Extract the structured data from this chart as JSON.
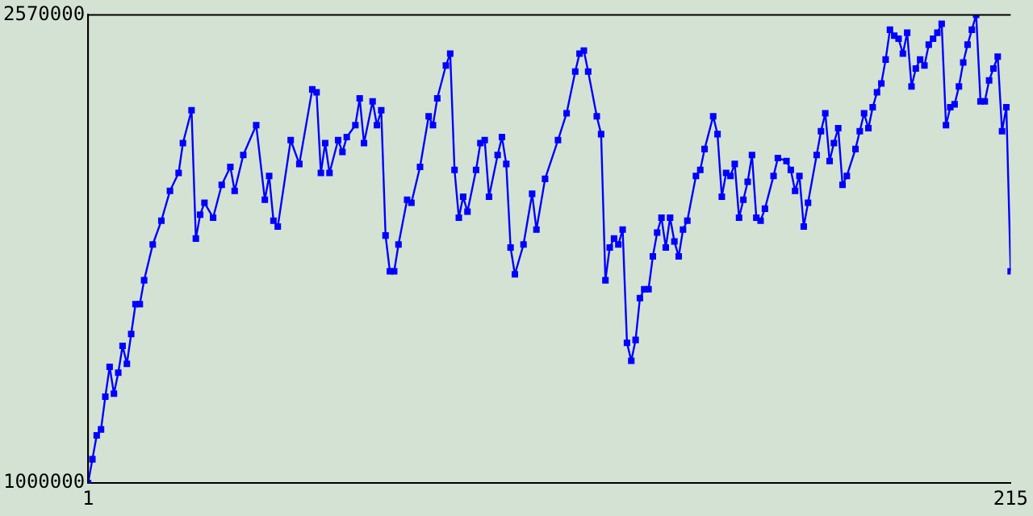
{
  "chart_data": {
    "type": "line",
    "marker": "square",
    "line_style": "solid",
    "grid": false,
    "legend": false,
    "xlim": [
      1,
      215
    ],
    "xticks": [
      1,
      215
    ],
    "ylim": [
      1000000,
      2570000
    ],
    "yticks": [
      1000000,
      2570000
    ],
    "series": [
      {
        "color": "#0000ff",
        "x": [
          1,
          2,
          3,
          4,
          5,
          6,
          7,
          8,
          9,
          10,
          11,
          12,
          13,
          14,
          16,
          18,
          20,
          22,
          23,
          25,
          26,
          27,
          28,
          30,
          32,
          34,
          35,
          37,
          40,
          42,
          43,
          44,
          45,
          48,
          50,
          53,
          54,
          55,
          56,
          57,
          59,
          60,
          61,
          63,
          64,
          65,
          67,
          68,
          69,
          70,
          71,
          72,
          73,
          75,
          76,
          78,
          80,
          81,
          82,
          84,
          85,
          86,
          87,
          88,
          89,
          91,
          92,
          93,
          94,
          96,
          97,
          98,
          99,
          100,
          102,
          104,
          105,
          107,
          110,
          112,
          114,
          115,
          116,
          117,
          119,
          120,
          121,
          122,
          123,
          124,
          125,
          126,
          127,
          128,
          129,
          130,
          131,
          132,
          133,
          134,
          135,
          136,
          137,
          138,
          139,
          140,
          142,
          143,
          144,
          146,
          147,
          148,
          149,
          150,
          151,
          152,
          153,
          154,
          155,
          156,
          157,
          158,
          160,
          161,
          163,
          164,
          165,
          166,
          167,
          168,
          170,
          171,
          172,
          173,
          174,
          175,
          176,
          177,
          179,
          180,
          181,
          182,
          183,
          184,
          185,
          186,
          187,
          188,
          189,
          190,
          191,
          192,
          193,
          194,
          195,
          196,
          197,
          198,
          199,
          200,
          201,
          202,
          203,
          204,
          205,
          206,
          207,
          208,
          209,
          210,
          211,
          212,
          213,
          214,
          215
        ],
        "values": [
          1000000,
          1080000,
          1160000,
          1180000,
          1290000,
          1390000,
          1300000,
          1370000,
          1460000,
          1400000,
          1500000,
          1600000,
          1600000,
          1680000,
          1800000,
          1880000,
          1980000,
          2040000,
          2140000,
          2250000,
          1820000,
          1900000,
          1940000,
          1890000,
          2000000,
          2060000,
          1980000,
          2100000,
          2200000,
          1950000,
          2030000,
          1880000,
          1860000,
          2150000,
          2070000,
          2320000,
          2310000,
          2040000,
          2140000,
          2040000,
          2150000,
          2110000,
          2160000,
          2200000,
          2290000,
          2140000,
          2280000,
          2200000,
          2250000,
          1830000,
          1710000,
          1710000,
          1800000,
          1950000,
          1940000,
          2060000,
          2230000,
          2200000,
          2290000,
          2400000,
          2440000,
          2050000,
          1890000,
          1960000,
          1910000,
          2050000,
          2140000,
          2150000,
          1960000,
          2100000,
          2160000,
          2070000,
          1790000,
          1700000,
          1800000,
          1970000,
          1850000,
          2020000,
          2150000,
          2240000,
          2380000,
          2440000,
          2450000,
          2380000,
          2230000,
          2170000,
          1680000,
          1790000,
          1820000,
          1800000,
          1850000,
          1470000,
          1410000,
          1480000,
          1620000,
          1650000,
          1650000,
          1760000,
          1840000,
          1890000,
          1790000,
          1890000,
          1810000,
          1760000,
          1850000,
          1880000,
          2030000,
          2050000,
          2120000,
          2230000,
          2170000,
          1960000,
          2040000,
          2030000,
          2070000,
          1890000,
          1950000,
          2010000,
          2100000,
          1890000,
          1880000,
          1920000,
          2030000,
          2090000,
          2080000,
          2050000,
          1980000,
          2030000,
          1860000,
          1940000,
          2100000,
          2180000,
          2240000,
          2080000,
          2140000,
          2190000,
          2000000,
          2030000,
          2120000,
          2180000,
          2240000,
          2190000,
          2260000,
          2310000,
          2340000,
          2420000,
          2520000,
          2500000,
          2490000,
          2440000,
          2510000,
          2330000,
          2390000,
          2420000,
          2400000,
          2470000,
          2490000,
          2510000,
          2540000,
          2200000,
          2260000,
          2270000,
          2330000,
          2410000,
          2470000,
          2520000,
          2570000,
          2280000,
          2280000,
          2350000,
          2390000,
          2430000,
          2180000,
          2260000,
          1710000
        ]
      }
    ]
  }
}
